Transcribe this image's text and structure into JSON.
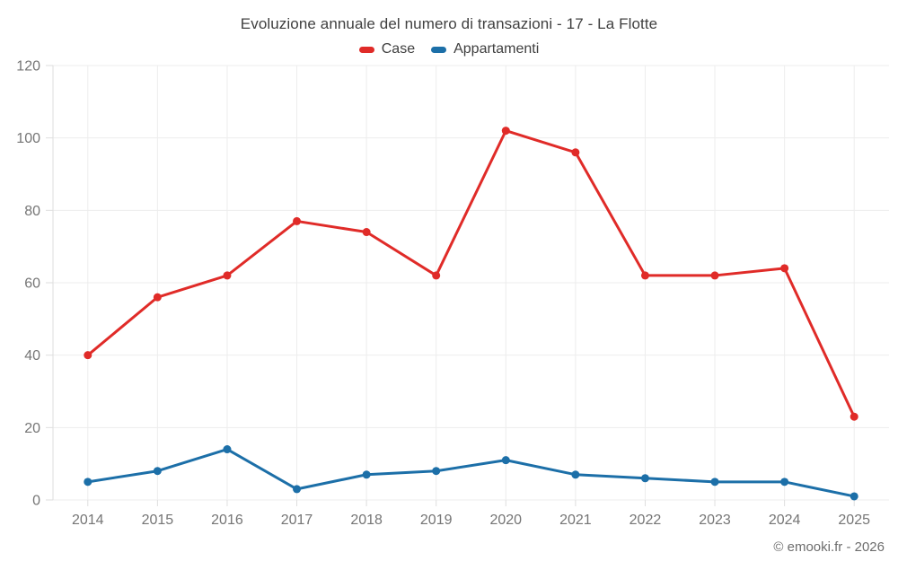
{
  "chart_data": {
    "type": "line",
    "title": "Evoluzione annuale del numero di transazioni - 17 - La Flotte",
    "categories": [
      "2014",
      "2015",
      "2016",
      "2017",
      "2018",
      "2019",
      "2020",
      "2021",
      "2022",
      "2023",
      "2024",
      "2025"
    ],
    "series": [
      {
        "name": "Case",
        "color": "#e02b28",
        "values": [
          40,
          56,
          62,
          77,
          74,
          62,
          102,
          96,
          62,
          62,
          64,
          23
        ]
      },
      {
        "name": "Appartamenti",
        "color": "#1c6fa8",
        "values": [
          5,
          8,
          14,
          3,
          7,
          8,
          11,
          7,
          6,
          5,
          5,
          1
        ]
      }
    ],
    "xlabel": "",
    "ylabel": "",
    "ylim": [
      0,
      120
    ],
    "ytick_step": 20,
    "grid": true,
    "legend_position": "top"
  },
  "style_colors": {
    "axis_text": "#757575",
    "grid_line": "#ededed",
    "axis_line": "#dedede",
    "title_text": "#3f3f3f"
  },
  "footer": {
    "copyright": "© emooki.fr - 2026"
  }
}
